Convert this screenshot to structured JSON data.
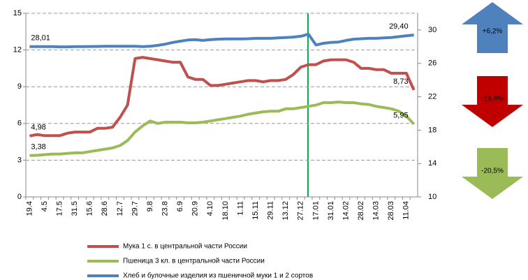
{
  "chart_data": {
    "type": "line",
    "categories": [
      "19.4",
      null,
      "4.5",
      null,
      "17.5",
      null,
      "31.5",
      null,
      "15.6",
      null,
      "28.6",
      null,
      "12.7",
      null,
      "29.7",
      null,
      "9.8",
      null,
      "23.8",
      null,
      "6.9",
      null,
      "20.9",
      null,
      "4.10",
      null,
      "18.10",
      null,
      "1.11",
      null,
      "15.11",
      null,
      "29.11",
      null,
      "13.12",
      null,
      "27.12",
      null,
      "17.01",
      null,
      "31.01",
      null,
      "14.02",
      null,
      "28.02",
      null,
      "14.03",
      null,
      "28.03",
      null,
      "11.04",
      null
    ],
    "ylim": [
      0,
      15
    ],
    "yticks": [
      0,
      3,
      6,
      9,
      12,
      15
    ],
    "y2lim": [
      10,
      32
    ],
    "y2ticks": [
      10,
      14,
      18,
      22,
      26,
      30
    ],
    "grid": true,
    "series": [
      {
        "name": "Мука 1 с. в центральной части России",
        "color": "#c0504d",
        "values": [
          4.98,
          5.1,
          5.0,
          5.0,
          5.0,
          5.2,
          5.3,
          5.3,
          5.3,
          5.6,
          5.6,
          5.7,
          6.5,
          7.5,
          11.3,
          11.4,
          11.3,
          11.2,
          11.1,
          11.0,
          11.0,
          9.8,
          9.6,
          9.6,
          9.1,
          9.1,
          9.2,
          9.3,
          9.4,
          9.5,
          9.5,
          9.4,
          9.5,
          9.5,
          9.6,
          10.0,
          10.6,
          10.8,
          10.8,
          11.1,
          11.2,
          11.2,
          11.2,
          11.0,
          10.5,
          10.5,
          10.4,
          10.4,
          10.1,
          10.1,
          10.1,
          8.73
        ],
        "value_labels": [
          "4,98",
          null,
          null,
          null,
          null,
          null,
          null,
          null,
          null,
          null,
          null,
          null,
          null,
          null,
          null,
          null,
          null,
          null,
          null,
          null,
          null,
          null,
          null,
          null,
          null,
          null,
          null,
          null,
          null,
          null,
          null,
          null,
          null,
          null,
          null,
          null,
          null,
          null,
          null,
          null,
          null,
          null,
          null,
          null,
          null,
          null,
          null,
          null,
          null,
          null,
          null,
          "8,73"
        ]
      },
      {
        "name": "Пшеница 3 кл. в центральной части России",
        "color": "#9bbb59",
        "values": [
          3.38,
          3.4,
          3.45,
          3.5,
          3.5,
          3.55,
          3.6,
          3.6,
          3.7,
          3.8,
          3.9,
          4.0,
          4.2,
          4.6,
          5.3,
          5.8,
          6.2,
          6.0,
          6.1,
          6.1,
          6.1,
          6.05,
          6.05,
          6.1,
          6.2,
          6.3,
          6.4,
          6.5,
          6.6,
          6.75,
          6.85,
          6.95,
          7.0,
          7.0,
          7.2,
          7.2,
          7.3,
          7.4,
          7.5,
          7.7,
          7.7,
          7.75,
          7.7,
          7.7,
          7.6,
          7.55,
          7.4,
          7.3,
          7.2,
          7.0,
          6.6,
          5.95
        ],
        "value_labels": [
          "3,38",
          null,
          null,
          null,
          null,
          null,
          null,
          null,
          null,
          null,
          null,
          null,
          null,
          null,
          null,
          null,
          null,
          null,
          null,
          null,
          null,
          null,
          null,
          null,
          null,
          null,
          null,
          null,
          null,
          null,
          null,
          null,
          null,
          null,
          null,
          null,
          null,
          null,
          null,
          null,
          null,
          null,
          null,
          null,
          null,
          null,
          null,
          null,
          null,
          null,
          null,
          "5,95"
        ]
      },
      {
        "name": "Хлеб и булочные изделия из пшеничной муки 1 и 2 сортов",
        "color": "#4f81bd",
        "axis": "y2",
        "values": [
          28.01,
          28.0,
          28.0,
          28.0,
          27.98,
          27.98,
          28.0,
          28.0,
          28.02,
          28.03,
          28.05,
          28.05,
          28.05,
          28.05,
          28.05,
          28.0,
          28.05,
          28.15,
          28.3,
          28.5,
          28.65,
          28.8,
          28.85,
          28.75,
          28.85,
          28.9,
          28.92,
          28.92,
          28.93,
          28.95,
          29.0,
          29.0,
          29.0,
          29.05,
          29.1,
          29.15,
          29.25,
          29.5,
          28.2,
          28.4,
          28.5,
          28.55,
          28.75,
          28.9,
          28.95,
          29.0,
          29.0,
          29.05,
          29.1,
          29.2,
          29.3,
          29.4
        ],
        "value_labels": [
          "28,01",
          null,
          null,
          null,
          null,
          null,
          null,
          null,
          null,
          null,
          null,
          null,
          null,
          null,
          null,
          null,
          null,
          null,
          null,
          null,
          null,
          null,
          null,
          null,
          null,
          null,
          null,
          null,
          null,
          null,
          null,
          null,
          null,
          null,
          null,
          null,
          null,
          null,
          null,
          null,
          null,
          null,
          null,
          null,
          null,
          null,
          null,
          null,
          null,
          null,
          null,
          "29,40"
        ]
      }
    ],
    "annotations": [
      {
        "text": "+6,2%",
        "color": "#4f81bd",
        "direction": "up"
      },
      {
        "text": "-19,6%",
        "color": "#c00000",
        "direction": "down"
      },
      {
        "text": "-20,5%",
        "color": "#9bbb59",
        "direction": "down"
      }
    ]
  }
}
